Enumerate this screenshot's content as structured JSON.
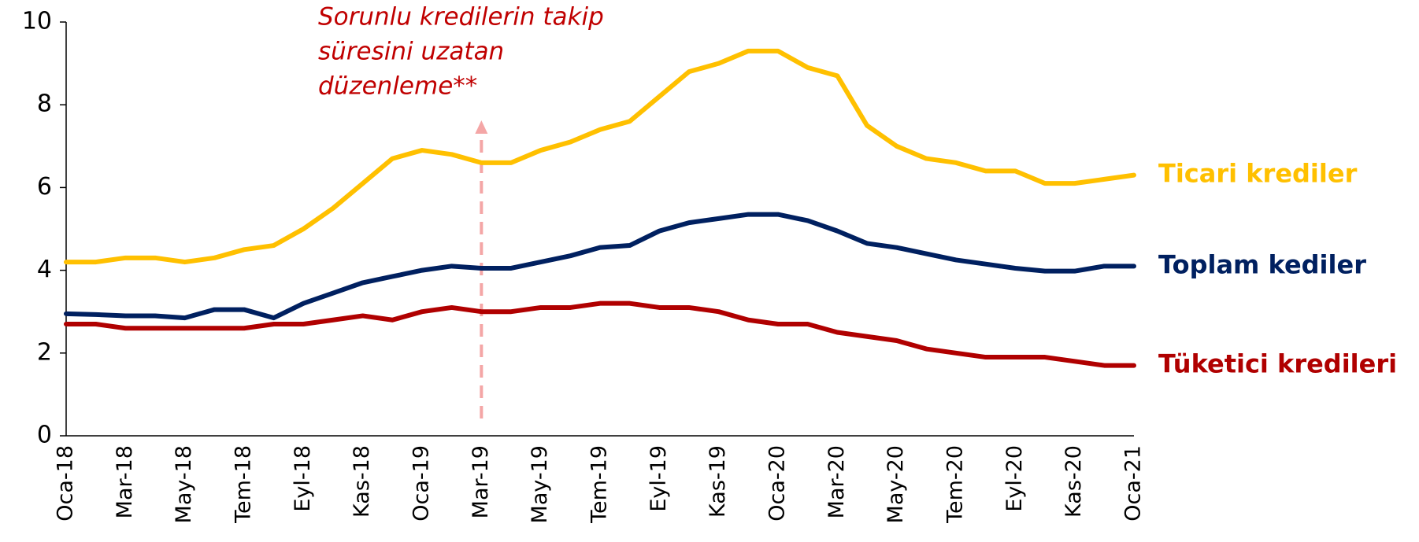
{
  "chart_data": {
    "type": "line",
    "categories": [
      "Oca-18",
      null,
      "Mar-18",
      null,
      "May-18",
      null,
      "Tem-18",
      null,
      "Eyl-18",
      null,
      "Kas-18",
      null,
      "Oca-19",
      null,
      "Mar-19",
      null,
      "May-19",
      null,
      "Tem-19",
      null,
      "Eyl-19",
      null,
      "Kas-19",
      null,
      "Oca-20",
      null,
      "Mar-20",
      null,
      "May-20",
      null,
      "Tem-20",
      null,
      "Eyl-20",
      null,
      "Kas-20",
      null,
      "Oca-21"
    ],
    "series": [
      {
        "name": "Ticari krediler",
        "color": "#FFC000",
        "values": [
          4.2,
          4.2,
          4.3,
          4.3,
          4.2,
          4.3,
          4.5,
          4.6,
          5.0,
          5.5,
          6.1,
          6.7,
          6.9,
          6.8,
          6.6,
          6.6,
          6.9,
          7.1,
          7.4,
          7.6,
          8.2,
          8.8,
          9.0,
          9.3,
          9.3,
          8.9,
          8.7,
          7.5,
          7.0,
          6.7,
          6.6,
          6.4,
          6.4,
          6.1,
          6.1,
          6.2,
          6.3
        ]
      },
      {
        "name": "Toplam kediler",
        "color": "#002060",
        "values": [
          2.95,
          2.93,
          2.9,
          2.9,
          2.85,
          3.05,
          3.05,
          2.85,
          3.2,
          3.45,
          3.7,
          3.85,
          4.0,
          4.1,
          4.05,
          4.05,
          4.2,
          4.35,
          4.55,
          4.6,
          4.95,
          5.15,
          5.25,
          5.35,
          5.35,
          5.2,
          4.95,
          4.65,
          4.55,
          4.4,
          4.25,
          4.15,
          4.05,
          3.98,
          3.98,
          4.1,
          4.1
        ]
      },
      {
        "name": "Tüketici kredileri",
        "color": "#B00000",
        "values": [
          2.7,
          2.7,
          2.6,
          2.6,
          2.6,
          2.6,
          2.6,
          2.7,
          2.7,
          2.8,
          2.9,
          2.8,
          3.0,
          3.1,
          3.0,
          3.0,
          3.1,
          3.1,
          3.2,
          3.2,
          3.1,
          3.1,
          3.0,
          2.8,
          2.7,
          2.7,
          2.5,
          2.4,
          2.3,
          2.1,
          2.0,
          1.9,
          1.9,
          1.9,
          1.8,
          1.7,
          1.7
        ]
      }
    ],
    "annotation": {
      "lines": [
        "Sorunlu kredilerin takip",
        "süresini uzatan",
        "düzenleme**"
      ],
      "color": "#C00000",
      "arrow_color": "#F4A6A6"
    },
    "ylim": [
      0,
      10
    ],
    "yticks": [
      0,
      2,
      4,
      6,
      8,
      10
    ],
    "grid": false
  }
}
